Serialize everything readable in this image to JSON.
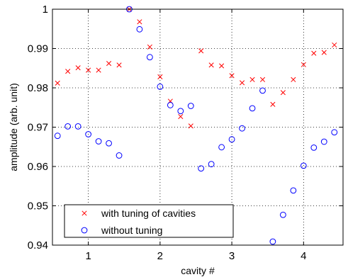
{
  "chart_data": {
    "type": "scatter",
    "title": "",
    "xlabel": "cavity #",
    "ylabel": "amplitude (arb. unit)",
    "xlim": [
      0.5,
      4.55
    ],
    "ylim": [
      0.94,
      1.0
    ],
    "xticks": [
      1,
      2,
      3,
      4
    ],
    "xtick_labels": [
      "1",
      "2",
      "3",
      "4"
    ],
    "yticks": [
      0.94,
      0.95,
      0.96,
      0.97,
      0.98,
      0.99,
      1.0
    ],
    "ytick_labels": [
      "0.94",
      "0.95",
      "0.96",
      "0.97",
      "0.98",
      "0.99",
      "1"
    ],
    "grid": true,
    "legend_position": "bottom-left",
    "series": [
      {
        "name": "with tuning of cavities",
        "marker": "x",
        "color": "#ff0000",
        "x": [
          0.571,
          0.714,
          0.857,
          1.0,
          1.143,
          1.286,
          1.429,
          1.571,
          1.714,
          1.857,
          2.0,
          2.143,
          2.286,
          2.429,
          2.571,
          2.714,
          2.857,
          3.0,
          3.143,
          3.286,
          3.429,
          3.571,
          3.714,
          3.857,
          4.0,
          4.143,
          4.286,
          4.429
        ],
        "y": [
          0.9812,
          0.9842,
          0.9851,
          0.9845,
          0.9845,
          0.9862,
          0.9858,
          1.0,
          0.9968,
          0.9904,
          0.9828,
          0.9766,
          0.9727,
          0.9703,
          0.9894,
          0.9858,
          0.9856,
          0.9831,
          0.9813,
          0.9821,
          0.9821,
          0.9758,
          0.9788,
          0.9821,
          0.9859,
          0.9888,
          0.989,
          0.9909
        ]
      },
      {
        "name": "without tuning",
        "marker": "o",
        "color": "#0000ff",
        "x": [
          0.571,
          0.714,
          0.857,
          1.0,
          1.143,
          1.286,
          1.429,
          1.571,
          1.714,
          1.857,
          2.0,
          2.143,
          2.286,
          2.429,
          2.571,
          2.714,
          2.857,
          3.0,
          3.143,
          3.286,
          3.429,
          3.571,
          3.714,
          3.857,
          4.0,
          4.143,
          4.286,
          4.429
        ],
        "y": [
          0.9678,
          0.9702,
          0.9702,
          0.9682,
          0.9664,
          0.9659,
          0.9628,
          1.0,
          0.9949,
          0.9878,
          0.9803,
          0.9756,
          0.9741,
          0.9754,
          0.9595,
          0.9606,
          0.9649,
          0.9669,
          0.9697,
          0.9748,
          0.9793,
          0.9409,
          0.9477,
          0.9539,
          0.9602,
          0.9648,
          0.9663,
          0.9687
        ]
      }
    ]
  }
}
